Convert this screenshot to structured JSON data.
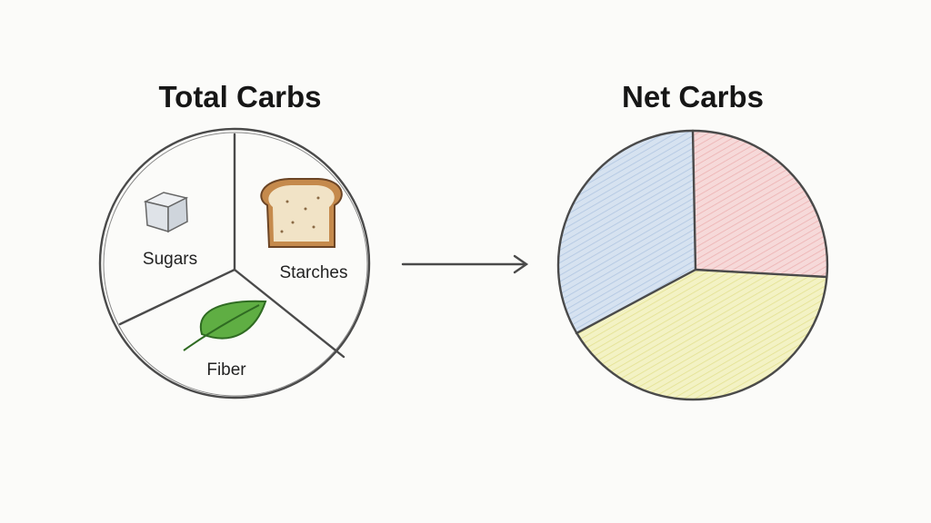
{
  "left": {
    "title": "Total Carbs",
    "segments": [
      "Sugars",
      "Starches",
      "Fiber"
    ]
  },
  "right": {
    "title": "Net Carbs"
  }
}
